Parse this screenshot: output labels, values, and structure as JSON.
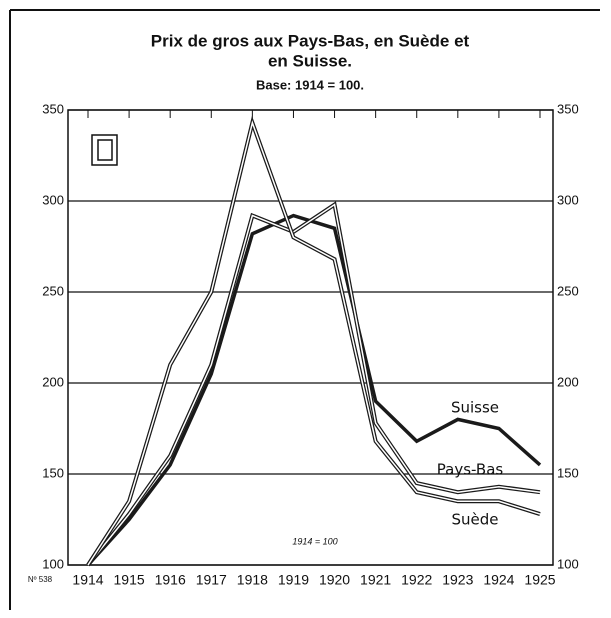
{
  "chart_data": {
    "type": "line",
    "title": "Prix de gros aux Pays-Bas, en Suède et",
    "title_line2": "en Suisse.",
    "subtitle": "Base: 1914 = 100.",
    "annotations": [
      "1914 = 100",
      "Nº 538"
    ],
    "categories": [
      "1914",
      "1915",
      "1916",
      "1917",
      "1918",
      "1919",
      "1920",
      "1921",
      "1922",
      "1923",
      "1924",
      "1925"
    ],
    "series": [
      {
        "name": "Suisse",
        "color": "#1a1a1a",
        "values": [
          100,
          125,
          155,
          205,
          282,
          292,
          285,
          190,
          168,
          180,
          175,
          155
        ]
      },
      {
        "name": "Pays-Bas",
        "color": "#1a1a1a",
        "values": [
          100,
          128,
          160,
          210,
          292,
          283,
          298,
          178,
          145,
          140,
          143,
          140
        ]
      },
      {
        "name": "Suède",
        "color": "#1a1a1a",
        "values": [
          100,
          135,
          210,
          250,
          343,
          280,
          268,
          168,
          140,
          135,
          135,
          128
        ]
      }
    ],
    "ylim": [
      100,
      350
    ],
    "yticks": [
      100,
      150,
      200,
      250,
      300,
      350
    ],
    "grid": true
  }
}
